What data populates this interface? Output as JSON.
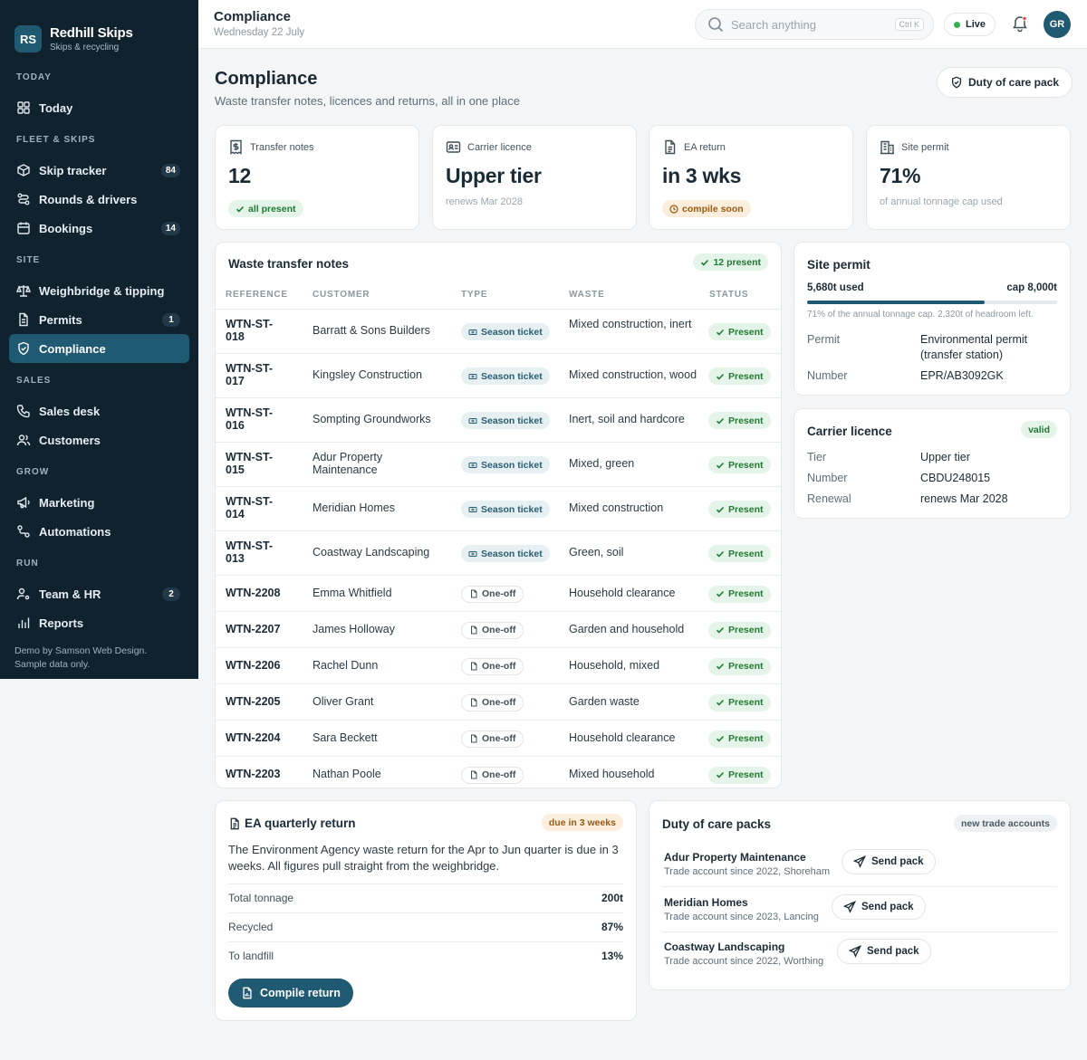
{
  "brand": {
    "initials": "RS",
    "name": "Redhill Skips",
    "sub": "Skips & recycling"
  },
  "nav": {
    "today_section": "TODAY",
    "today": "Today",
    "fleet_section": "FLEET & SKIPS",
    "skip_tracker": "Skip tracker",
    "skip_tracker_badge": "84",
    "rounds": "Rounds & drivers",
    "bookings": "Bookings",
    "bookings_badge": "14",
    "site_section": "SITE",
    "weighbridge": "Weighbridge & tipping",
    "permits": "Permits",
    "permits_badge": "1",
    "compliance": "Compliance",
    "sales_section": "SALES",
    "sales_desk": "Sales desk",
    "customers": "Customers",
    "grow_section": "GROW",
    "marketing": "Marketing",
    "automations": "Automations",
    "run_section": "RUN",
    "team_hr": "Team & HR",
    "team_hr_badge": "2",
    "reports": "Reports",
    "footer": "Demo by Samson Web Design. Sample data only."
  },
  "topbar": {
    "title": "Compliance",
    "date": "Wednesday 22 July",
    "search_placeholder": "Search anything",
    "shortcut": "Ctrl K",
    "live": "Live",
    "avatar": "GR"
  },
  "page": {
    "title": "Compliance",
    "subtitle": "Waste transfer notes, licences and returns, all in one place",
    "duty_button": "Duty of care pack"
  },
  "stats": [
    {
      "label": "Transfer notes",
      "value": "12",
      "pill": "all present"
    },
    {
      "label": "Carrier licence",
      "value": "Upper tier",
      "note": "renews Mar 2028"
    },
    {
      "label": "EA return",
      "value": "in 3 wks",
      "pill": "compile soon"
    },
    {
      "label": "Site permit",
      "value": "71%",
      "note": "of annual tonnage cap used"
    }
  ],
  "wtn": {
    "title": "Waste transfer notes",
    "count_pill": "12 present",
    "headers": [
      "REFERENCE",
      "CUSTOMER",
      "TYPE",
      "WASTE",
      "STATUS"
    ],
    "rows": [
      {
        "ref": "WTN-ST-018",
        "customer": "Barratt & Sons Builders",
        "type": "Season ticket",
        "waste": "Mixed construction, inert",
        "status": "Present"
      },
      {
        "ref": "WTN-ST-017",
        "customer": "Kingsley Construction",
        "type": "Season ticket",
        "waste": "Mixed construction, wood",
        "status": "Present"
      },
      {
        "ref": "WTN-ST-016",
        "customer": "Sompting Groundworks",
        "type": "Season ticket",
        "waste": "Inert, soil and hardcore",
        "status": "Present"
      },
      {
        "ref": "WTN-ST-015",
        "customer": "Adur Property Maintenance",
        "type": "Season ticket",
        "waste": "Mixed, green",
        "status": "Present"
      },
      {
        "ref": "WTN-ST-014",
        "customer": "Meridian Homes",
        "type": "Season ticket",
        "waste": "Mixed construction",
        "status": "Present"
      },
      {
        "ref": "WTN-ST-013",
        "customer": "Coastway Landscaping",
        "type": "Season ticket",
        "waste": "Green, soil",
        "status": "Present"
      },
      {
        "ref": "WTN-2208",
        "customer": "Emma Whitfield",
        "type": "One-off",
        "waste": "Household clearance",
        "status": "Present"
      },
      {
        "ref": "WTN-2207",
        "customer": "James Holloway",
        "type": "One-off",
        "waste": "Garden and household",
        "status": "Present"
      },
      {
        "ref": "WTN-2206",
        "customer": "Rachel Dunn",
        "type": "One-off",
        "waste": "Household, mixed",
        "status": "Present"
      },
      {
        "ref": "WTN-2205",
        "customer": "Oliver Grant",
        "type": "One-off",
        "waste": "Garden waste",
        "status": "Present"
      },
      {
        "ref": "WTN-2204",
        "customer": "Sara Beckett",
        "type": "One-off",
        "waste": "Household clearance",
        "status": "Present"
      },
      {
        "ref": "WTN-2203",
        "customer": "Nathan Poole",
        "type": "One-off",
        "waste": "Mixed household",
        "status": "Present"
      }
    ]
  },
  "site_permit": {
    "title": "Site permit",
    "used": "5,680t used",
    "cap": "cap 8,000t",
    "fill_fraction": 0.71,
    "note": "71% of the annual tonnage cap. 2,320t of headroom left.",
    "permit_label": "Permit",
    "permit_value": "Environmental permit (transfer station)",
    "number_label": "Number",
    "number_value": "EPR/AB3092GK"
  },
  "carrier": {
    "title": "Carrier licence",
    "pill": "valid",
    "tier_label": "Tier",
    "tier_value": "Upper tier",
    "number_label": "Number",
    "number_value": "CBDU248015",
    "renewal_label": "Renewal",
    "renewal_value": "renews Mar 2028"
  },
  "ea_return": {
    "title": "EA quarterly return",
    "pill": "due in 3 weeks",
    "body": "The Environment Agency waste return for the Apr to Jun quarter is due in 3 weeks. All figures pull straight from the weighbridge.",
    "rows": [
      {
        "label": "Total tonnage",
        "value": "200t"
      },
      {
        "label": "Recycled",
        "value": "87%"
      },
      {
        "label": "To landfill",
        "value": "13%"
      }
    ],
    "button": "Compile return"
  },
  "duty_packs": {
    "title": "Duty of care packs",
    "pill": "new trade accounts",
    "items": [
      {
        "name": "Adur Property Maintenance",
        "sub": "Trade account since 2022, Shoreham",
        "button": "Send pack"
      },
      {
        "name": "Meridian Homes",
        "sub": "Trade account since 2023, Lancing",
        "button": "Send pack"
      },
      {
        "name": "Coastway Landscaping",
        "sub": "Trade account since 2022, Worthing",
        "button": "Send pack"
      }
    ]
  },
  "colors": {
    "sidebar": "#10222e",
    "accent": "#1f5a72",
    "green": "#1f7a34",
    "amber": "#9a5a12"
  }
}
